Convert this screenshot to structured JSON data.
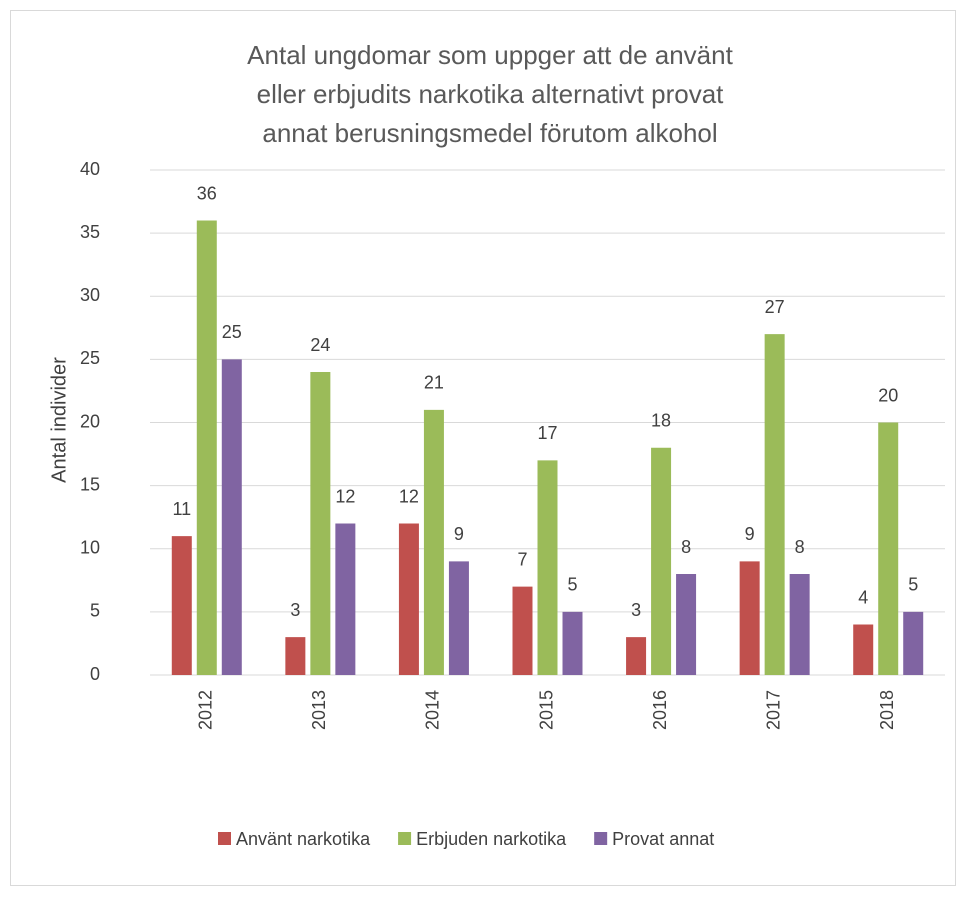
{
  "chart_data": {
    "type": "bar",
    "title": "Antal ungdomar som uppger att de använt eller erbjudits narkotika alternativt provat annat berusningsmedel förutom alkohol",
    "y_label": "Antal individer",
    "categories": [
      "2012",
      "2013",
      "2014",
      "2015",
      "2016",
      "2017",
      "2018"
    ],
    "series": [
      {
        "name": "Använt narkotika",
        "color": "#c0504d",
        "values": [
          11,
          3,
          12,
          7,
          3,
          9,
          4
        ]
      },
      {
        "name": "Erbjuden narkotika",
        "color": "#9bbb59",
        "values": [
          36,
          24,
          21,
          17,
          18,
          27,
          20
        ]
      },
      {
        "name": "Provat annat",
        "color": "#8064a2",
        "values": [
          25,
          12,
          9,
          5,
          8,
          8,
          5
        ]
      }
    ],
    "ylim": [
      0,
      40
    ],
    "yticks": [
      0,
      5,
      10,
      15,
      20,
      25,
      30,
      35,
      40
    ],
    "grid": true,
    "legend": "bottom"
  }
}
